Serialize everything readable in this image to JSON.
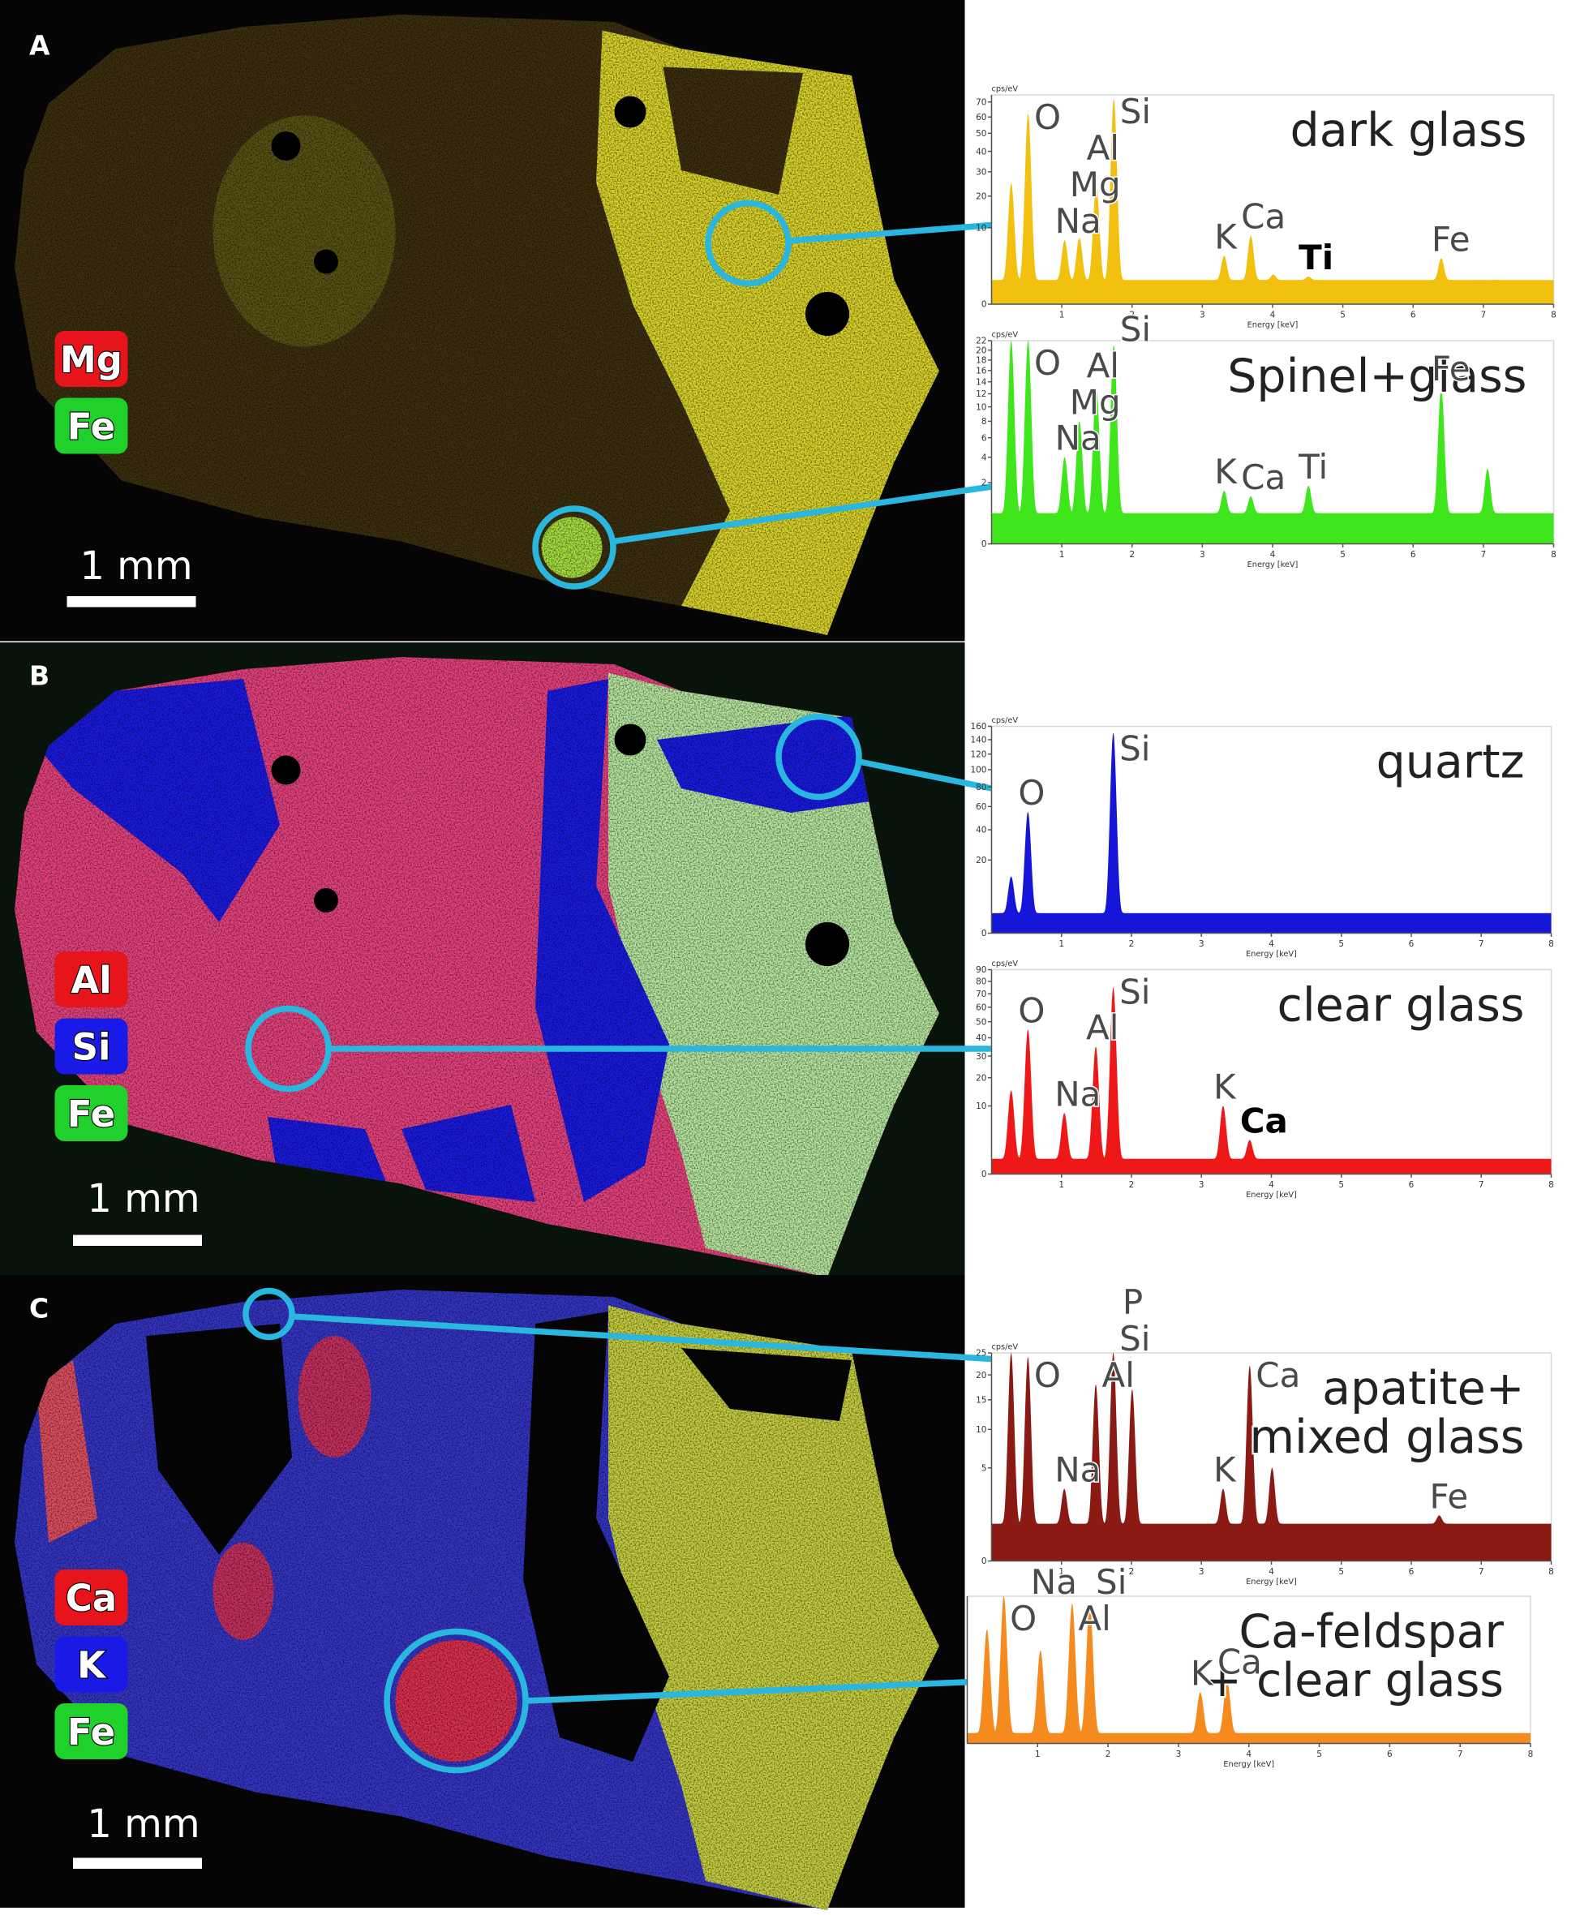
{
  "panels": [
    {
      "label": "A",
      "scale_bar": "1 mm",
      "legend": [
        {
          "text": "Mg",
          "color": "#e8141b"
        },
        {
          "text": "Fe",
          "color": "#1fd12a"
        }
      ],
      "spectra": [
        {
          "title": [
            "dark glass"
          ],
          "color": "#f2c10f",
          "ylabel": "cps/eV",
          "xlabel": "Energy [keV]",
          "xlim": [
            0,
            8
          ],
          "xticks": [
            1,
            2,
            3,
            4,
            5,
            6,
            7,
            8
          ],
          "ylim": [
            0,
            75
          ],
          "yticks": [
            0,
            10,
            20,
            30,
            40,
            50,
            60,
            70
          ],
          "yscale": "sqrt",
          "background": 1,
          "peaks": [
            {
              "x": 0.28,
              "y": 25
            },
            {
              "label": "O",
              "x": 0.52,
              "y": 62
            },
            {
              "label": "Na",
              "x": 1.04,
              "y": 7
            },
            {
              "label": "Mg",
              "x": 1.25,
              "y": 7.5
            },
            {
              "label": "Al",
              "x": 1.49,
              "y": 24
            },
            {
              "label": "Si",
              "x": 1.74,
              "y": 72
            },
            {
              "label": "K",
              "x": 3.31,
              "y": 4
            },
            {
              "label": "Ca",
              "x": 3.69,
              "y": 8
            },
            {
              "x": 4.01,
              "y": 1.5
            },
            {
              "label": "Ti",
              "x": 4.51,
              "y": 1.3,
              "emphasis": true
            },
            {
              "label": "Fe",
              "x": 6.4,
              "y": 3.6
            },
            {
              "x": 7.06,
              "y": 0.8
            }
          ]
        },
        {
          "title": [
            "Spinel+glass"
          ],
          "color": "#3ee61b",
          "ylabel": "cps/eV",
          "xlabel": "Energy [keV]",
          "xlim": [
            0,
            8
          ],
          "xticks": [
            1,
            2,
            3,
            4,
            5,
            6,
            7,
            8
          ],
          "ylim": [
            0,
            22
          ],
          "yticks": [
            0,
            2,
            4,
            6,
            8,
            10,
            12,
            14,
            16,
            18,
            20,
            22
          ],
          "yscale": "sqrt",
          "background": 0.5,
          "peaks": [
            {
              "x": 0.28,
              "y": 22
            },
            {
              "label": "O",
              "x": 0.52,
              "y": 22
            },
            {
              "label": "Na",
              "x": 1.04,
              "y": 4
            },
            {
              "label": "Mg",
              "x": 1.25,
              "y": 8
            },
            {
              "label": "Al",
              "x": 1.49,
              "y": 13
            },
            {
              "label": "Si",
              "x": 1.74,
              "y": 21
            },
            {
              "label": "K",
              "x": 3.31,
              "y": 1.5
            },
            {
              "label": "Ca",
              "x": 3.69,
              "y": 1.2
            },
            {
              "label": "Ti",
              "x": 4.51,
              "y": 1.8
            },
            {
              "label": "Fe",
              "x": 6.4,
              "y": 13
            },
            {
              "x": 7.06,
              "y": 3
            }
          ]
        }
      ]
    },
    {
      "label": "B",
      "scale_bar": "1 mm",
      "legend": [
        {
          "text": "Al",
          "color": "#e8141b"
        },
        {
          "text": "Si",
          "color": "#1a1ae6"
        },
        {
          "text": "Fe",
          "color": "#1fd12a"
        }
      ],
      "spectra": [
        {
          "title": [
            "quartz"
          ],
          "color": "#1616d8",
          "ylabel": "cps/eV",
          "xlabel": "Energy [keV]",
          "xlim": [
            0,
            8
          ],
          "xticks": [
            1,
            2,
            3,
            4,
            5,
            6,
            7,
            8
          ],
          "ylim": [
            0,
            160
          ],
          "yticks": [
            0,
            20,
            40,
            60,
            80,
            100,
            120,
            140,
            160
          ],
          "yscale": "sqrt",
          "background": 1.5,
          "peaks": [
            {
              "x": 0.28,
              "y": 12
            },
            {
              "label": "O",
              "x": 0.52,
              "y": 55
            },
            {
              "label": "Si",
              "x": 1.74,
              "y": 150
            }
          ]
        },
        {
          "title": [
            "clear glass"
          ],
          "color": "#ee1818",
          "ylabel": "cps/eV",
          "xlabel": "Energy [keV]",
          "xlim": [
            0,
            8
          ],
          "xticks": [
            1,
            2,
            3,
            4,
            5,
            6,
            7,
            8
          ],
          "ylim": [
            0,
            90
          ],
          "yticks": [
            0,
            10,
            20,
            30,
            40,
            50,
            60,
            70,
            80,
            90
          ],
          "yscale": "sqrt",
          "background": 0.5,
          "peaks": [
            {
              "x": 0.28,
              "y": 15
            },
            {
              "label": "O",
              "x": 0.52,
              "y": 45
            },
            {
              "label": "Na",
              "x": 1.04,
              "y": 8
            },
            {
              "label": "Al",
              "x": 1.49,
              "y": 35
            },
            {
              "label": "Si",
              "x": 1.74,
              "y": 75
            },
            {
              "label": "K",
              "x": 3.31,
              "y": 10
            },
            {
              "label": "Ca",
              "x": 3.69,
              "y": 2.5,
              "emphasis": true
            }
          ]
        }
      ]
    },
    {
      "label": "C",
      "scale_bar": "1 mm",
      "legend": [
        {
          "text": "Ca",
          "color": "#e8141b"
        },
        {
          "text": "K",
          "color": "#1a1ae6"
        },
        {
          "text": "Fe",
          "color": "#1fd12a"
        }
      ],
      "spectra": [
        {
          "title": [
            "apatite+",
            "mixed glass"
          ],
          "color": "#8b1a14",
          "ylabel": "cps/eV",
          "xlabel": "Energy [keV]",
          "xlim": [
            0,
            8
          ],
          "xticks": [
            1,
            2,
            3,
            4,
            5,
            6,
            7,
            8
          ],
          "ylim": [
            0,
            25
          ],
          "yticks": [
            0,
            5,
            10,
            15,
            20,
            25
          ],
          "yscale": "sqrt",
          "background": 0.8,
          "peaks": [
            {
              "x": 0.28,
              "y": 25
            },
            {
              "label": "O",
              "x": 0.52,
              "y": 24
            },
            {
              "label": "Na",
              "x": 1.04,
              "y": 3
            },
            {
              "label": "Al",
              "x": 1.49,
              "y": 18
            },
            {
              "label": "Si",
              "x": 1.74,
              "y": 25
            },
            {
              "label": "P",
              "x": 2.01,
              "y": 17
            },
            {
              "label": "K",
              "x": 3.31,
              "y": 3
            },
            {
              "label": "Ca",
              "x": 3.69,
              "y": 22
            },
            {
              "x": 4.01,
              "y": 5
            },
            {
              "label": "Fe",
              "x": 6.4,
              "y": 1.2
            }
          ]
        },
        {
          "title": [
            "Ca-feldspar",
            "+ clear glass"
          ],
          "color": "#f58a1f",
          "xlabel": "Energy [keV]",
          "xlim": [
            0,
            8
          ],
          "xticks": [
            1,
            2,
            3,
            4,
            5,
            6,
            7,
            8
          ],
          "ylim": [
            0,
            100
          ],
          "yscale": "sqrt",
          "background": 0.5,
          "peaks": [
            {
              "x": 0.28,
              "y": 60
            },
            {
              "label": "O",
              "x": 0.52,
              "y": 100
            },
            {
              "label": "Na",
              "x": 1.04,
              "y": 40
            },
            {
              "label": "Al",
              "x": 1.49,
              "y": 90
            },
            {
              "label": "Si",
              "x": 1.74,
              "y": 90
            },
            {
              "label": "K",
              "x": 3.31,
              "y": 12
            },
            {
              "label": "Ca",
              "x": 3.69,
              "y": 18
            }
          ]
        }
      ]
    }
  ]
}
